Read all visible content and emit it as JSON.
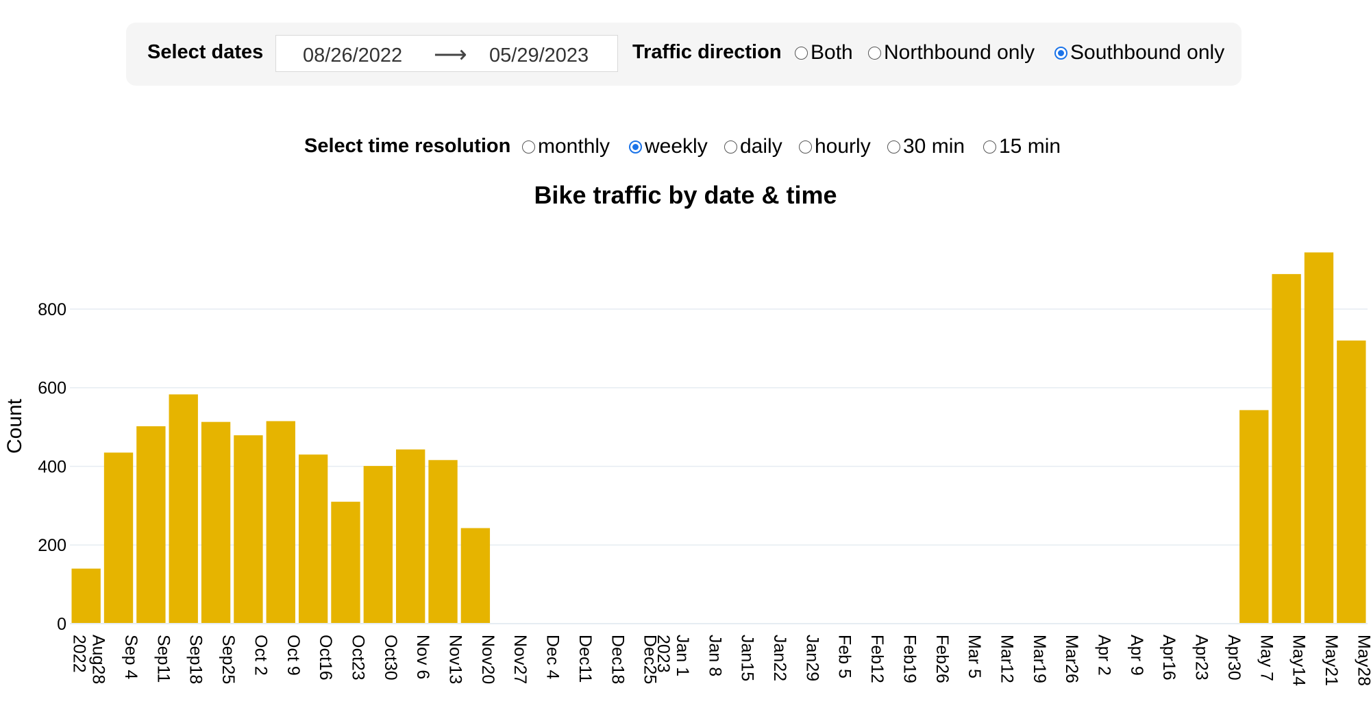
{
  "controls": {
    "select_dates_label": "Select dates",
    "start_date": "08/26/2022",
    "end_date": "05/29/2023",
    "arrow": "⟶",
    "traffic_direction_label": "Traffic direction",
    "direction_options": [
      "Both",
      "Northbound only",
      "Southbound only"
    ],
    "direction_selected": "Southbound only",
    "time_resolution_label": "Select time resolution",
    "resolution_options": [
      "monthly",
      "weekly",
      "daily",
      "hourly",
      "30 min",
      "15 min"
    ],
    "resolution_selected": "weekly"
  },
  "colors": {
    "bar": "#e6b400",
    "grid": "#e6ecf2",
    "radio_selected": "#1a73e8"
  },
  "chart_data": {
    "type": "bar",
    "title": "Bike traffic by date & time",
    "xlabel": "",
    "ylabel": "Count",
    "ylim": [
      0,
      980
    ],
    "yticks": [
      0,
      200,
      400,
      600,
      800
    ],
    "grid": true,
    "categories": [
      [
        "Aug28",
        "2022"
      ],
      [
        "Sep 4"
      ],
      [
        "Sep11"
      ],
      [
        "Sep18"
      ],
      [
        "Sep25"
      ],
      [
        "Oct 2"
      ],
      [
        "Oct 9"
      ],
      [
        "Oct16"
      ],
      [
        "Oct23"
      ],
      [
        "Oct30"
      ],
      [
        "Nov 6"
      ],
      [
        "Nov13"
      ],
      [
        "Nov20"
      ],
      [
        "Nov27"
      ],
      [
        "Dec 4"
      ],
      [
        "Dec11"
      ],
      [
        "Dec18"
      ],
      [
        "Dec25"
      ],
      [
        "Jan 1",
        "2023"
      ],
      [
        "Jan 8"
      ],
      [
        "Jan15"
      ],
      [
        "Jan22"
      ],
      [
        "Jan29"
      ],
      [
        "Feb 5"
      ],
      [
        "Feb12"
      ],
      [
        "Feb19"
      ],
      [
        "Feb26"
      ],
      [
        "Mar 5"
      ],
      [
        "Mar12"
      ],
      [
        "Mar19"
      ],
      [
        "Mar26"
      ],
      [
        "Apr 2"
      ],
      [
        "Apr 9"
      ],
      [
        "Apr16"
      ],
      [
        "Apr23"
      ],
      [
        "Apr30"
      ],
      [
        "May 7"
      ],
      [
        "May14"
      ],
      [
        "May21"
      ],
      [
        "May28"
      ]
    ],
    "values": [
      140,
      435,
      502,
      583,
      513,
      479,
      515,
      430,
      310,
      401,
      443,
      416,
      243,
      0,
      0,
      0,
      0,
      0,
      0,
      0,
      0,
      0,
      0,
      0,
      0,
      0,
      0,
      0,
      0,
      0,
      0,
      0,
      0,
      0,
      0,
      0,
      543,
      889,
      944,
      720
    ]
  }
}
